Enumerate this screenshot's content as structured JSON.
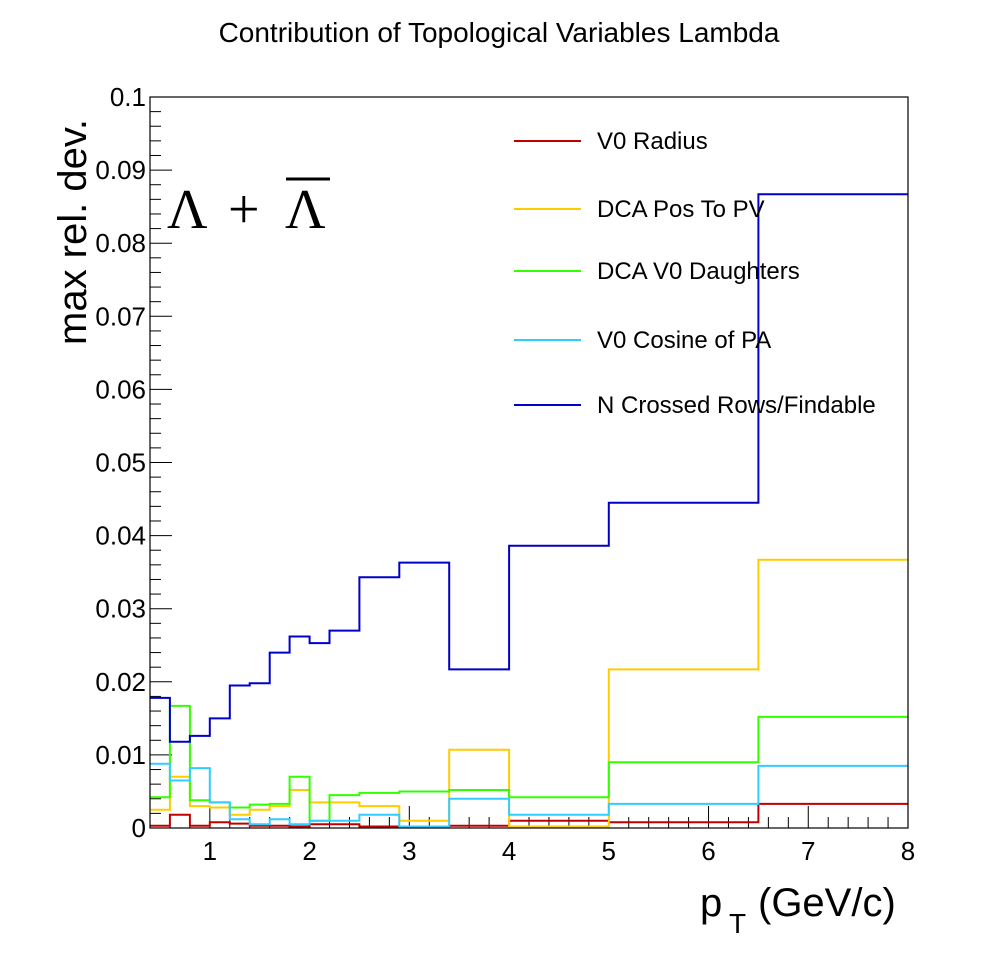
{
  "chart_data": {
    "type": "line",
    "title": "Contribution of Topological Variables Lambda",
    "xlabel": "p",
    "xlabel_sub": "T",
    "xlabel_unit": "(GeV/c)",
    "ylabel": "max rel. dev.",
    "annotation": {
      "lambda": "Λ",
      "plus": "+",
      "lambda_bar": "Λ"
    },
    "xlim": [
      0.4,
      8.0
    ],
    "ylim": [
      0,
      0.1
    ],
    "x_ticks": [
      1,
      2,
      3,
      4,
      5,
      6,
      7,
      8
    ],
    "x_tick_labels": [
      "1",
      "2",
      "3",
      "4",
      "5",
      "6",
      "7",
      "8"
    ],
    "y_ticks": [
      0,
      0.01,
      0.02,
      0.03,
      0.04,
      0.05,
      0.06,
      0.07,
      0.08,
      0.09,
      0.1
    ],
    "y_tick_labels": [
      "0",
      "0.01",
      "0.02",
      "0.03",
      "0.04",
      "0.05",
      "0.06",
      "0.07",
      "0.08",
      "0.09",
      "0.1"
    ],
    "legend_position": "top-right",
    "grid": false,
    "bin_edges": [
      0.4,
      0.6,
      0.8,
      1.0,
      1.2,
      1.4,
      1.6,
      1.8,
      2.0,
      2.2,
      2.5,
      2.9,
      3.4,
      4.0,
      5.0,
      6.5,
      8.0
    ],
    "series": [
      {
        "name": "V0 Radius",
        "color": "#c00000",
        "values": [
          0.0003,
          0.0018,
          0.0003,
          0.0008,
          0.0006,
          0.0003,
          0.0003,
          0.0002,
          0.0005,
          0.0005,
          0.0002,
          0.0001,
          0.0003,
          0.001,
          0.0008,
          0.0033
        ]
      },
      {
        "name": "DCA Pos To PV",
        "color": "#ffcc00",
        "values": [
          0.0025,
          0.007,
          0.003,
          0.0028,
          0.0018,
          0.0025,
          0.003,
          0.0052,
          0.0035,
          0.0035,
          0.003,
          0.001,
          0.0107,
          0.0002,
          0.0217,
          0.0367
        ]
      },
      {
        "name": "DCA V0 Daughters",
        "color": "#33ff00",
        "values": [
          0.0042,
          0.0167,
          0.0038,
          0.0035,
          0.0028,
          0.0032,
          0.0033,
          0.007,
          0.001,
          0.0045,
          0.0048,
          0.005,
          0.0052,
          0.0042,
          0.009,
          0.0152
        ]
      },
      {
        "name": "V0 Cosine of PA",
        "color": "#33ccff",
        "values": [
          0.0088,
          0.0065,
          0.0082,
          0.0035,
          0.0012,
          0.0005,
          0.0012,
          0.0005,
          0.001,
          0.001,
          0.0018,
          0.0002,
          0.004,
          0.0018,
          0.0033,
          0.0085
        ]
      },
      {
        "name": "N Crossed Rows/Findable",
        "color": "#0000cc",
        "values": [
          0.0178,
          0.0118,
          0.0126,
          0.015,
          0.0195,
          0.0198,
          0.024,
          0.0262,
          0.0253,
          0.027,
          0.0343,
          0.0363,
          0.0217,
          0.0386,
          0.0445,
          0.0867
        ]
      }
    ]
  }
}
